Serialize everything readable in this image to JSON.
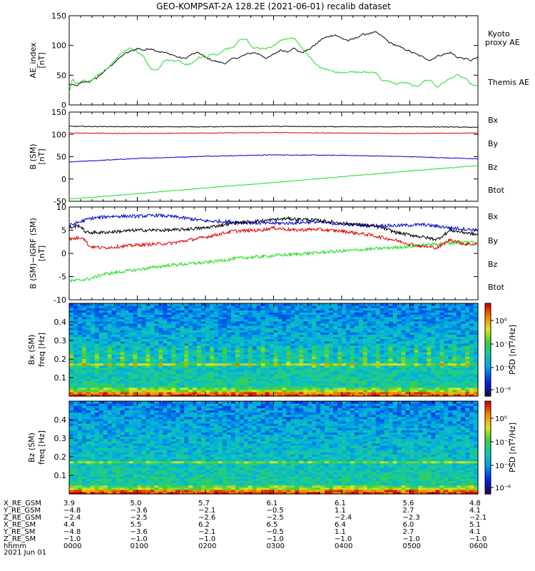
{
  "title": "GEO-KOMPSAT-2A 128.2E (2021-06-01) recalib dataset",
  "colors": {
    "black": "#000000",
    "green": "#22dd22",
    "blue": "#0000cc",
    "red": "#dd0000"
  },
  "chart_data": [
    {
      "type": "line",
      "name": "ae-panel",
      "ylabel_lines": [
        "AE_index",
        "[nT]"
      ],
      "ylim": [
        0,
        150
      ],
      "yticks": [
        0,
        50,
        100,
        150
      ],
      "xlim_hours": [
        0,
        6
      ],
      "legend": [
        {
          "lines": [
            "Kyoto",
            "proxy AE"
          ],
          "color": "#22dd22"
        },
        {
          "lines": [
            "Themis AE"
          ],
          "color": "#000000"
        }
      ],
      "series": [
        {
          "key": "themis",
          "color": "#000000",
          "x": [
            0,
            0.1,
            0.2,
            0.3,
            0.4,
            0.5,
            0.6,
            0.7,
            0.8,
            0.9,
            1.0,
            1.1,
            1.2,
            1.3,
            1.4,
            1.5,
            1.6,
            1.7,
            1.8,
            1.9,
            2.0,
            2.1,
            2.2,
            2.3,
            2.4,
            2.5,
            2.6,
            2.7,
            2.8,
            2.9,
            3.0,
            3.1,
            3.2,
            3.3,
            3.4,
            3.5,
            3.6,
            3.7,
            3.8,
            3.9,
            4.0,
            4.1,
            4.2,
            4.3,
            4.4,
            4.5,
            4.6,
            4.7,
            4.8,
            4.9,
            5.0,
            5.1,
            5.2,
            5.3,
            5.4,
            5.5,
            5.6,
            5.7,
            5.8,
            5.9,
            6.0
          ],
          "y": [
            35,
            32,
            38,
            40,
            45,
            55,
            65,
            75,
            85,
            90,
            95,
            92,
            95,
            90,
            88,
            85,
            80,
            78,
            85,
            88,
            80,
            75,
            72,
            70,
            78,
            80,
            85,
            88,
            85,
            78,
            85,
            92,
            90,
            95,
            88,
            92,
            100,
            110,
            115,
            118,
            112,
            108,
            112,
            118,
            120,
            122,
            115,
            105,
            100,
            95,
            90,
            85,
            80,
            75,
            82,
            85,
            88,
            80,
            78,
            75,
            80
          ]
        },
        {
          "key": "kyoto",
          "color": "#22dd22",
          "x": [
            0,
            0.05,
            0.1,
            0.2,
            0.3,
            0.4,
            0.5,
            0.6,
            0.7,
            0.8,
            0.9,
            1.0,
            1.1,
            1.2,
            1.3,
            1.4,
            1.5,
            1.6,
            1.7,
            1.8,
            1.9,
            2.0,
            2.1,
            2.2,
            2.3,
            2.4,
            2.5,
            2.6,
            2.7,
            2.8,
            2.9,
            3.0,
            3.1,
            3.2,
            3.3,
            3.4,
            3.5,
            3.6,
            3.7,
            3.8,
            3.9,
            4.0,
            4.1,
            4.2,
            4.3,
            4.4,
            4.5,
            4.6,
            4.7,
            4.8,
            4.9,
            5.0,
            5.1,
            5.2,
            5.3,
            5.4,
            5.5,
            5.6,
            5.7,
            5.8,
            5.9,
            6.0
          ],
          "y": [
            20,
            45,
            35,
            42,
            38,
            48,
            55,
            65,
            80,
            90,
            95,
            90,
            80,
            60,
            60,
            75,
            75,
            75,
            68,
            70,
            80,
            80,
            85,
            85,
            95,
            95,
            110,
            110,
            95,
            95,
            95,
            100,
            108,
            112,
            112,
            98,
            85,
            70,
            62,
            60,
            55,
            55,
            55,
            55,
            55,
            55,
            55,
            40,
            40,
            35,
            38,
            35,
            30,
            40,
            42,
            30,
            38,
            45,
            50,
            45,
            35,
            30
          ]
        }
      ]
    },
    {
      "type": "line",
      "name": "b-sm-panel",
      "ylabel_lines": [
        "B (SM)",
        "[nT]"
      ],
      "ylim": [
        -50,
        150
      ],
      "yticks": [
        -50,
        0,
        50,
        100,
        150
      ],
      "xlim_hours": [
        0,
        6
      ],
      "legend": [
        {
          "lines": [
            "Bx"
          ],
          "color": "#0000cc"
        },
        {
          "lines": [
            "By"
          ],
          "color": "#22dd22"
        },
        {
          "lines": [
            "Bz"
          ],
          "color": "#dd0000"
        },
        {
          "lines": [
            "Btot"
          ],
          "color": "#000000"
        }
      ],
      "series": [
        {
          "key": "bx",
          "color": "#0000cc",
          "x": [
            0,
            1,
            2,
            3,
            4,
            5,
            6
          ],
          "y": [
            38,
            46,
            51,
            54,
            53,
            50,
            45
          ]
        },
        {
          "key": "by",
          "color": "#22dd22",
          "x": [
            0,
            1,
            2,
            3,
            4,
            5,
            6
          ],
          "y": [
            -45,
            -33,
            -20,
            -8,
            5,
            18,
            30
          ]
        },
        {
          "key": "bz",
          "color": "#dd0000",
          "x": [
            0,
            1,
            2,
            3,
            4,
            5,
            6
          ],
          "y": [
            103,
            102,
            103,
            104,
            103,
            102,
            103
          ]
        },
        {
          "key": "btot",
          "color": "#000000",
          "x": [
            0,
            1,
            2,
            3,
            4,
            5,
            6
          ],
          "y": [
            118,
            117,
            117,
            118,
            117,
            117,
            116
          ]
        }
      ]
    },
    {
      "type": "line",
      "name": "b-sm-igrf-panel",
      "ylabel_lines": [
        "B (SM)−IGRF (SM)",
        "[nT]"
      ],
      "ylim": [
        -10,
        10
      ],
      "yticks": [
        -10,
        -5,
        0,
        5,
        10
      ],
      "xlim_hours": [
        0,
        6
      ],
      "legend": [
        {
          "lines": [
            "Bx"
          ],
          "color": "#0000cc"
        },
        {
          "lines": [
            "By"
          ],
          "color": "#22dd22"
        },
        {
          "lines": [
            "Bz"
          ],
          "color": "#dd0000"
        },
        {
          "lines": [
            "Btot"
          ],
          "color": "#000000"
        }
      ],
      "series": [
        {
          "key": "bx",
          "color": "#0000cc",
          "x": [
            0,
            0.3,
            0.6,
            1.0,
            1.3,
            1.6,
            2.0,
            2.4,
            2.8,
            3.2,
            3.6,
            4.0,
            4.4,
            4.8,
            5.2,
            5.6,
            6.0
          ],
          "y": [
            6,
            7.5,
            8,
            8,
            8.2,
            7.8,
            7,
            6.8,
            6.5,
            6.5,
            6.8,
            6.3,
            6,
            6,
            6.2,
            5.5,
            5
          ]
        },
        {
          "key": "by",
          "color": "#22dd22",
          "x": [
            0,
            0.3,
            0.5,
            1.0,
            1.5,
            2.0,
            2.5,
            3.0,
            3.5,
            4.0,
            4.5,
            5.0,
            5.5,
            6.0
          ],
          "y": [
            -6,
            -5.5,
            -4.5,
            -3.5,
            -2.5,
            -2,
            -1,
            -0.5,
            0,
            0.5,
            1,
            1.5,
            2.2,
            2.5
          ]
        },
        {
          "key": "bz",
          "color": "#dd0000",
          "x": [
            0,
            0.2,
            0.3,
            0.5,
            1.0,
            1.5,
            2.0,
            2.4,
            2.8,
            3.0,
            3.3,
            3.6,
            4.0,
            4.4,
            4.8,
            5.0,
            5.2,
            5.4,
            5.6,
            5.8,
            6.0
          ],
          "y": [
            3,
            3.5,
            1.5,
            1.2,
            1.8,
            2.2,
            3.5,
            4.8,
            5,
            5.5,
            5,
            5.2,
            4.8,
            4,
            2.8,
            2,
            1.5,
            1.2,
            3,
            2,
            2
          ]
        },
        {
          "key": "btot",
          "color": "#000000",
          "x": [
            0,
            0.15,
            0.25,
            0.5,
            1.0,
            1.5,
            2.0,
            2.4,
            2.8,
            3.2,
            3.6,
            4.0,
            4.4,
            4.6,
            4.8,
            5.0,
            5.2,
            5.4,
            5.6,
            5.8,
            6.0
          ],
          "y": [
            5.5,
            6,
            4.5,
            4.5,
            5,
            5,
            5.5,
            6.5,
            7,
            7.5,
            7.2,
            6.5,
            6,
            5.5,
            4.5,
            4,
            3.5,
            3,
            5,
            4.5,
            4
          ]
        }
      ]
    },
    {
      "type": "heatmap",
      "name": "bx-spectrogram",
      "ylabel_lines": [
        "Bx (SM)",
        "freq [Hz]"
      ],
      "ylim": [
        0,
        0.5
      ],
      "yticks": [
        0.1,
        0.2,
        0.3,
        0.4
      ],
      "xlim_hours": [
        0,
        6
      ],
      "colorbar": {
        "label": "PSD [nT²/Hz]",
        "ticks": [
          "10⁰",
          "10⁻²",
          "10⁻⁴",
          "10⁻⁶"
        ]
      }
    },
    {
      "type": "heatmap",
      "name": "bz-spectrogram",
      "ylabel_lines": [
        "Bz (SM)",
        "freq [Hz]"
      ],
      "ylim": [
        0,
        0.5
      ],
      "yticks": [
        0.1,
        0.2,
        0.3,
        0.4
      ],
      "xlim_hours": [
        0,
        6
      ],
      "colorbar": {
        "label": "PSD [nT²/Hz]",
        "ticks": [
          "10⁰",
          "10⁻²",
          "10⁻⁴",
          "10⁻⁶"
        ]
      }
    }
  ],
  "ephemeris": {
    "row_labels": [
      "X_RE_GSM",
      "Y_RE_GSM",
      "Z_RE_GSM",
      "X_RE_SM",
      "Y_RE_SM",
      "Z_RE_SM",
      "hhmm",
      "2021 Jun 01"
    ],
    "columns": [
      [
        "3.9",
        "−4.8",
        "−2.4",
        "4.4",
        "−4.8",
        "−1.0",
        "0000"
      ],
      [
        "5.0",
        "−3.6",
        "−2.5",
        "5.5",
        "−3.6",
        "−1.0",
        "0100"
      ],
      [
        "5.7",
        "−2.1",
        "−2.6",
        "6.2",
        "−2.1",
        "−1.0",
        "0200"
      ],
      [
        "6.1",
        "−0.5",
        "−2.5",
        "6.5",
        "−0.5",
        "−1.0",
        "0300"
      ],
      [
        "6.1",
        "1.1",
        "−2.4",
        "6.4",
        "1.1",
        "−1.0",
        "0400"
      ],
      [
        "5.6",
        "2.7",
        "−2.3",
        "6.0",
        "2.7",
        "−1.0",
        "0500"
      ],
      [
        "4.8",
        "4.1",
        "−2.1",
        "5.1",
        "4.1",
        "−1.0",
        "0600"
      ]
    ]
  }
}
